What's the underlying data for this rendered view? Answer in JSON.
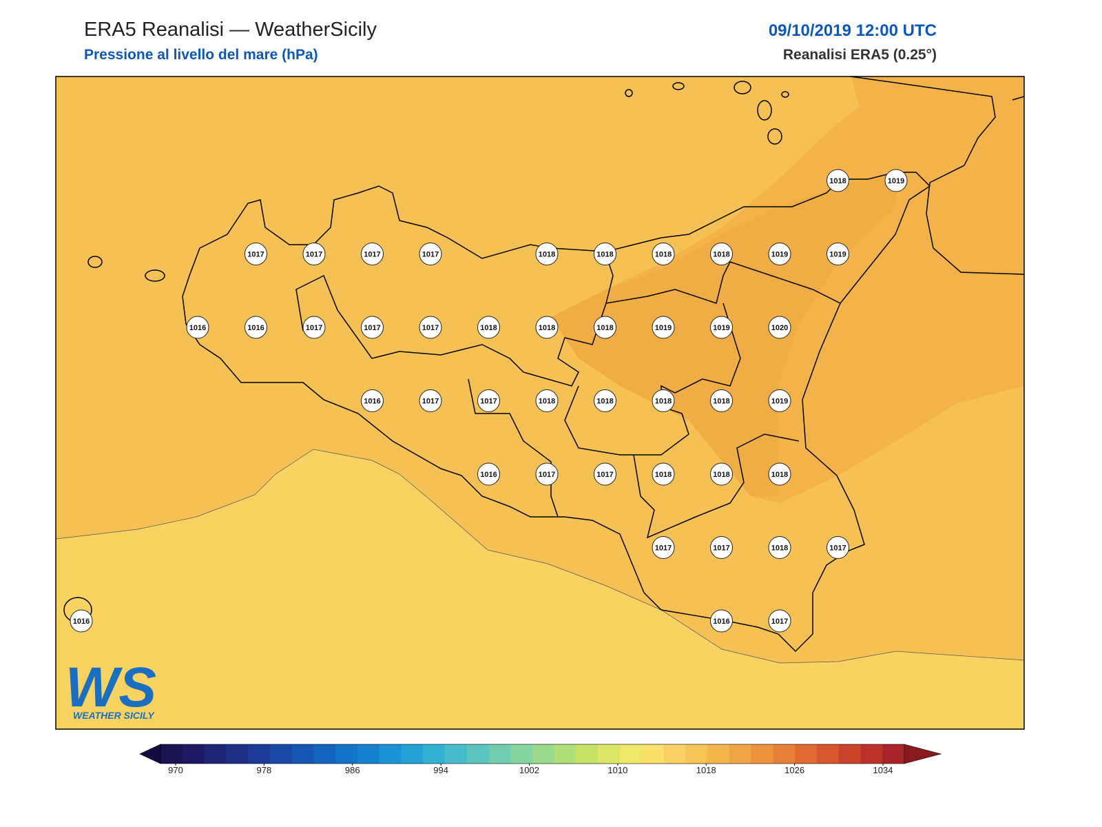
{
  "header": {
    "title": "ERA5 Reanalisi — WeatherSicily",
    "subtitle": "Pressione al livello del mare (hPa)",
    "datetime": "09/10/2019 12:00 UTC",
    "source": "Reanalisi ERA5 (0.25°)"
  },
  "stations": {
    "grid": [
      [
        null,
        null,
        null,
        null,
        null,
        null,
        null,
        null,
        null,
        null,
        null,
        null,
        null,
        1018,
        1019
      ],
      [
        null,
        null,
        null,
        1017,
        1017,
        1017,
        1017,
        null,
        1018,
        1018,
        1018,
        1018,
        1019,
        1019,
        null
      ],
      [
        null,
        null,
        1016,
        1016,
        1017,
        1017,
        1017,
        1018,
        1018,
        1018,
        1019,
        1019,
        1020,
        null,
        null
      ],
      [
        null,
        null,
        null,
        null,
        null,
        1016,
        1017,
        1017,
        1018,
        1018,
        1018,
        1018,
        1019,
        null,
        null
      ],
      [
        null,
        null,
        null,
        null,
        null,
        null,
        null,
        1016,
        1017,
        1017,
        1018,
        1018,
        1018,
        null,
        null
      ],
      [
        null,
        null,
        null,
        null,
        null,
        null,
        null,
        null,
        null,
        null,
        1017,
        1017,
        1018,
        1017,
        null
      ],
      [
        1016,
        null,
        null,
        null,
        null,
        null,
        null,
        null,
        null,
        null,
        null,
        1016,
        1017,
        null,
        null
      ]
    ]
  },
  "logo": {
    "mark": "WS",
    "text": "WEATHER SICILY"
  },
  "colorbar": {
    "ticks": [
      970,
      978,
      986,
      994,
      1002,
      1010,
      1018,
      1026,
      1034
    ],
    "colors": [
      "#1b1250",
      "#1f1a62",
      "#202474",
      "#1f2f86",
      "#1d3b96",
      "#1a49a5",
      "#1656b3",
      "#1364bf",
      "#1273c8",
      "#1482cf",
      "#1a92d3",
      "#24a2d5",
      "#33b1d3",
      "#47bccb",
      "#5cc5bf",
      "#71cdb0",
      "#86d49f",
      "#9bda8c",
      "#b1df78",
      "#c7e366",
      "#dbe666",
      "#ede76a",
      "#f8e06a",
      "#fad263",
      "#f6c457",
      "#f3b64d",
      "#f0a543",
      "#ec933c",
      "#e77f36",
      "#e06a31",
      "#d6562e",
      "#ca432b",
      "#bc322a",
      "#a82428"
    ],
    "under": "#140b40",
    "over": "#8a1a20"
  }
}
